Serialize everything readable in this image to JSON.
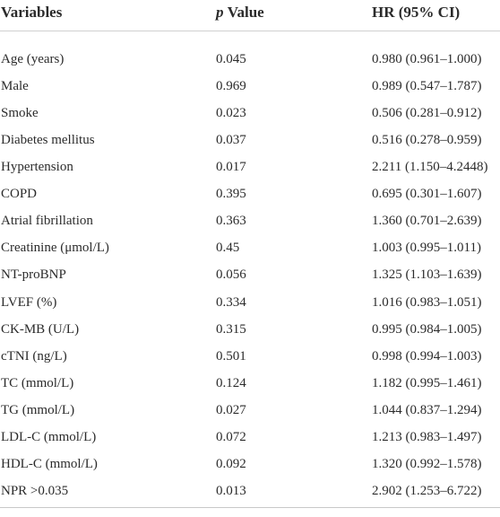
{
  "table": {
    "header": {
      "variables": "Variables",
      "p_value": {
        "italic": "p",
        "text": "Value"
      },
      "hr": "HR (95% CI)"
    },
    "rows": [
      [
        "Age (years)",
        "0.045",
        "0.980 (0.961–1.000)"
      ],
      [
        "Male",
        "0.969",
        "0.989 (0.547–1.787)"
      ],
      [
        "Smoke",
        "0.023",
        "0.506 (0.281–0.912)"
      ],
      [
        "Diabetes mellitus",
        "0.037",
        "0.516 (0.278–0.959)"
      ],
      [
        "Hypertension",
        "0.017",
        "2.211 (1.150–4.2448)"
      ],
      [
        "COPD",
        "0.395",
        "0.695 (0.301–1.607)"
      ],
      [
        "Atrial fibrillation",
        "0.363",
        "1.360 (0.701–2.639)"
      ],
      [
        "Creatinine (μmol/L)",
        "0.45",
        "1.003 (0.995–1.011)"
      ],
      [
        "NT-proBNP",
        "0.056",
        "1.325 (1.103–1.639)"
      ],
      [
        "LVEF (%)",
        "0.334",
        "1.016 (0.983–1.051)"
      ],
      [
        "CK-MB (U/L)",
        "0.315",
        "0.995 (0.984–1.005)"
      ],
      [
        "cTNI (ng/L)",
        "0.501",
        "0.998 (0.994–1.003)"
      ],
      [
        "TC (mmol/L)",
        "0.124",
        "1.182 (0.995–1.461)"
      ],
      [
        "TG (mmol/L)",
        "0.027",
        "1.044 (0.837–1.294)"
      ],
      [
        "LDL-C (mmol/L)",
        "0.072",
        "1.213 (0.983–1.497)"
      ],
      [
        "HDL-C (mmol/L)",
        "0.092",
        "1.320 (0.992–1.578)"
      ],
      [
        "NPR >0.035",
        "0.013",
        "2.902 (1.253–6.722)"
      ]
    ]
  }
}
